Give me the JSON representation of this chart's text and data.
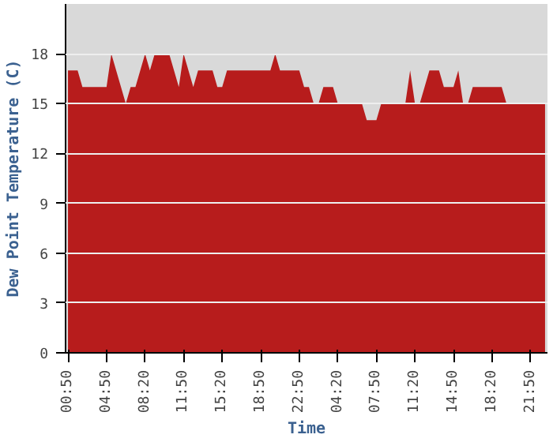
{
  "chart_data": {
    "type": "area",
    "xlabel": "Time",
    "ylabel": "Dew Point Temperature (C)",
    "categories": [
      "00:50",
      null,
      null,
      null,
      null,
      null,
      null,
      null,
      "04:50",
      null,
      null,
      null,
      null,
      null,
      null,
      null,
      "08:20",
      null,
      null,
      null,
      null,
      null,
      null,
      null,
      "11:50",
      null,
      null,
      null,
      null,
      null,
      null,
      null,
      "15:20",
      null,
      null,
      null,
      null,
      null,
      null,
      null,
      "18:50",
      null,
      null,
      null,
      null,
      null,
      null,
      null,
      "22:50",
      null,
      null,
      null,
      null,
      null,
      null,
      null,
      "04:20",
      null,
      null,
      null,
      null,
      null,
      null,
      null,
      "07:50",
      null,
      null,
      null,
      null,
      null,
      null,
      null,
      "11:20",
      null,
      null,
      null,
      null,
      null,
      null,
      null,
      "14:50",
      null,
      null,
      null,
      null,
      null,
      null,
      null,
      "18:20",
      null,
      null,
      null,
      null,
      null,
      null,
      null,
      "21:50",
      null,
      null,
      null
    ],
    "series": [
      {
        "color": "#b71c1c",
        "values": [
          17,
          17,
          17,
          16,
          16,
          16,
          16,
          16,
          16,
          18,
          17,
          16,
          15,
          16,
          16,
          17,
          18,
          17,
          18,
          18,
          18,
          18,
          17,
          16,
          18,
          17,
          16,
          17,
          17,
          17,
          17,
          16,
          16,
          17,
          17,
          17,
          17,
          17,
          17,
          17,
          17,
          17,
          17,
          18,
          17,
          17,
          17,
          17,
          17,
          16,
          16,
          15,
          15,
          16,
          16,
          16,
          15,
          15,
          15,
          15,
          15,
          15,
          14,
          14,
          14,
          15,
          15,
          15,
          15,
          15,
          15,
          17,
          15,
          15,
          16,
          17,
          17,
          17,
          16,
          16,
          16,
          17,
          15,
          15,
          16,
          16,
          16,
          16,
          16,
          16,
          16,
          15,
          15,
          15,
          15,
          15,
          15,
          15,
          15,
          15
        ]
      }
    ],
    "ylim": [
      0,
      21
    ],
    "yticks": [
      0,
      3,
      6,
      9,
      12,
      15,
      18
    ],
    "grid": "y"
  }
}
